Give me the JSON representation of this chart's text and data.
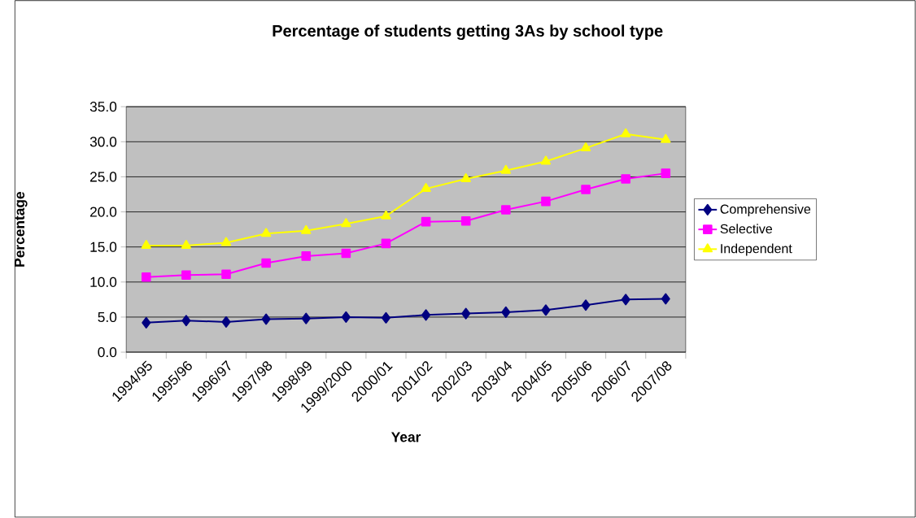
{
  "chart_data": {
    "type": "line",
    "title": "Percentage of students getting 3As by school type",
    "xlabel": "Year",
    "ylabel": "Percentage",
    "categories": [
      "1994/95",
      "1995/96",
      "1996/97",
      "1997/98",
      "1998/99",
      "1999/2000",
      "2000/01",
      "2001/02",
      "2002/03",
      "2003/04",
      "2004/05",
      "2005/06",
      "2006/07",
      "2007/08"
    ],
    "series": [
      {
        "name": "Comprehensive",
        "color": "#000080",
        "marker": "diamond",
        "values": [
          4.2,
          4.5,
          4.3,
          4.7,
          4.8,
          5.0,
          4.9,
          5.3,
          5.5,
          5.7,
          6.0,
          6.7,
          7.5,
          7.6
        ]
      },
      {
        "name": "Selective",
        "color": "#ff00ff",
        "marker": "square",
        "values": [
          10.7,
          11.0,
          11.1,
          12.7,
          13.7,
          14.1,
          15.5,
          18.6,
          18.7,
          20.3,
          21.5,
          23.2,
          24.7,
          25.5
        ]
      },
      {
        "name": "Independent",
        "color": "#ffff00",
        "marker": "triangle",
        "values": [
          15.2,
          15.2,
          15.6,
          16.9,
          17.3,
          18.3,
          19.4,
          23.3,
          24.7,
          25.9,
          27.2,
          29.1,
          31.1,
          30.3
        ]
      }
    ],
    "ylim": [
      0,
      35
    ],
    "yticks": [
      {
        "value": 0,
        "label": "0.0"
      },
      {
        "value": 5,
        "label": "5.0"
      },
      {
        "value": 10,
        "label": "10.0"
      },
      {
        "value": 15,
        "label": "15.0"
      },
      {
        "value": 20,
        "label": "20.0"
      },
      {
        "value": 25,
        "label": "25.0"
      },
      {
        "value": 30,
        "label": "30.0"
      },
      {
        "value": 35,
        "label": "35.0"
      }
    ],
    "grid": "y",
    "legend": "right",
    "line_style": "solid"
  }
}
